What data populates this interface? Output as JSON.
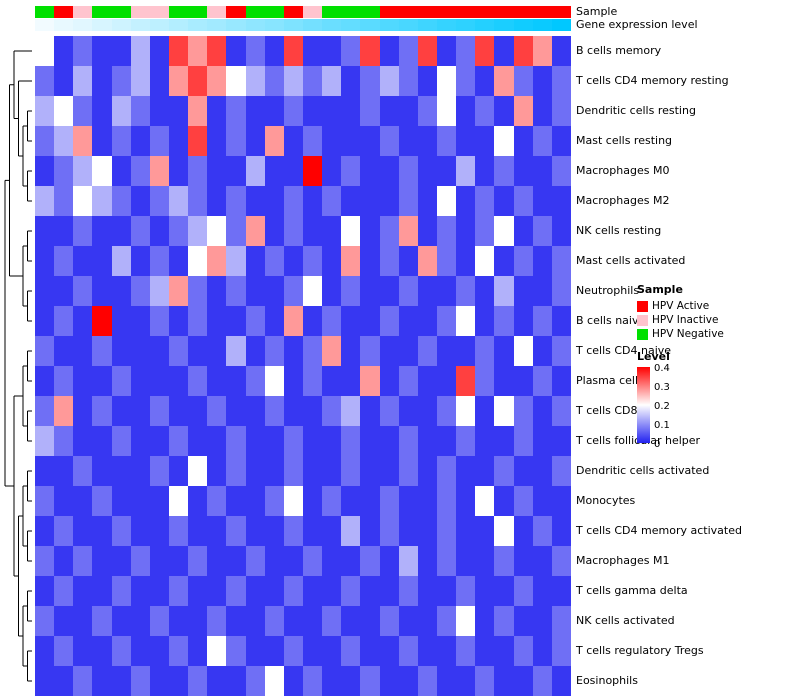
{
  "annotations": {
    "sample_label": "Sample",
    "expression_label": "Gene expression level"
  },
  "legend": {
    "sample_title": "Sample",
    "sample_items": [
      {
        "label": "HPV Active",
        "color": "#FF0000"
      },
      {
        "label": "HPV Inactive",
        "color": "#FFC4CE"
      },
      {
        "label": "HPV Negative",
        "color": "#00E000"
      }
    ],
    "level_title": "Level",
    "level_ticks": [
      "0.4",
      "0.3",
      "0.2",
      "0.1",
      "0"
    ]
  },
  "chart_data": {
    "type": "heatmap",
    "title": "",
    "rows": [
      "B cells memory",
      "T cells CD4 memory resting",
      "Dendritic cells resting",
      "Mast cells resting",
      "Macrophages M0",
      "Macrophages M2",
      "NK cells resting",
      "Mast cells activated",
      "Neutrophils",
      "B cells naive",
      "T cells CD4 naive",
      "Plasma cells",
      "T cells CD8",
      "T cells follicular helper",
      "Dendritic cells activated",
      "Monocytes",
      "T cells CD4 memory activated",
      "Macrophages M1",
      "T cells gamma delta",
      "NK cells activated",
      "T cells regulatory Tregs",
      "Eosinophils"
    ],
    "n_cols": 28,
    "value_range": [
      0,
      0.4
    ],
    "colormap": {
      "low": "#2121F0",
      "mid": "#FFFFFF",
      "high": "#FF0000",
      "midpoint": 0.2
    },
    "column_annotations": {
      "sample": [
        "HPV Negative",
        "HPV Active",
        "HPV Inactive",
        "HPV Negative",
        "HPV Negative",
        "HPV Inactive",
        "HPV Inactive",
        "HPV Negative",
        "HPV Negative",
        "HPV Inactive",
        "HPV Active",
        "HPV Negative",
        "HPV Negative",
        "HPV Active",
        "HPV Inactive",
        "HPV Negative",
        "HPV Negative",
        "HPV Negative",
        "HPV Active",
        "HPV Active",
        "HPV Active",
        "HPV Active",
        "HPV Active",
        "HPV Active",
        "HPV Active",
        "HPV Active",
        "HPV Active",
        "HPV Active"
      ],
      "sample_colors": {
        "HPV Active": "#FF0000",
        "HPV Inactive": "#FFC4CE",
        "HPV Negative": "#00E000"
      },
      "gene_expression_level": [
        0.0,
        0.04,
        0.07,
        0.11,
        0.15,
        0.19,
        0.22,
        0.26,
        0.3,
        0.33,
        0.37,
        0.41,
        0.44,
        0.48,
        0.52,
        0.56,
        0.59,
        0.63,
        0.67,
        0.7,
        0.74,
        0.78,
        0.81,
        0.85,
        0.89,
        0.93,
        0.96,
        1.0
      ],
      "gene_expression_colors": {
        "low": "#F2FBFF",
        "high": "#00C8FF"
      }
    },
    "values": [
      [
        0.2,
        0.02,
        0.07,
        0.02,
        0.02,
        0.13,
        0.02,
        0.35,
        0.28,
        0.35,
        0.02,
        0.07,
        0.02,
        0.35,
        0.02,
        0.02,
        0.07,
        0.35,
        0.02,
        0.07,
        0.35,
        0.02,
        0.07,
        0.35,
        0.02,
        0.35,
        0.28,
        0.02
      ],
      [
        0.07,
        0.02,
        0.13,
        0.02,
        0.07,
        0.13,
        0.02,
        0.28,
        0.35,
        0.28,
        0.2,
        0.13,
        0.07,
        0.13,
        0.07,
        0.13,
        0.02,
        0.07,
        0.13,
        0.07,
        0.02,
        0.2,
        0.07,
        0.02,
        0.28,
        0.07,
        0.02,
        0.07
      ],
      [
        0.13,
        0.2,
        0.07,
        0.02,
        0.13,
        0.07,
        0.02,
        0.02,
        0.28,
        0.02,
        0.07,
        0.02,
        0.02,
        0.07,
        0.02,
        0.02,
        0.02,
        0.07,
        0.02,
        0.02,
        0.07,
        0.2,
        0.02,
        0.07,
        0.02,
        0.28,
        0.02,
        0.07
      ],
      [
        0.07,
        0.13,
        0.28,
        0.02,
        0.07,
        0.02,
        0.07,
        0.02,
        0.35,
        0.02,
        0.07,
        0.02,
        0.28,
        0.02,
        0.07,
        0.02,
        0.02,
        0.02,
        0.07,
        0.02,
        0.02,
        0.07,
        0.02,
        0.02,
        0.2,
        0.02,
        0.07,
        0.02
      ],
      [
        0.02,
        0.07,
        0.13,
        0.2,
        0.02,
        0.07,
        0.28,
        0.02,
        0.07,
        0.02,
        0.02,
        0.13,
        0.02,
        0.02,
        0.4,
        0.02,
        0.07,
        0.02,
        0.02,
        0.07,
        0.02,
        0.02,
        0.13,
        0.02,
        0.07,
        0.02,
        0.02,
        0.07
      ],
      [
        0.13,
        0.07,
        0.2,
        0.13,
        0.07,
        0.02,
        0.07,
        0.13,
        0.07,
        0.02,
        0.07,
        0.02,
        0.02,
        0.07,
        0.02,
        0.07,
        0.02,
        0.02,
        0.02,
        0.07,
        0.02,
        0.2,
        0.02,
        0.07,
        0.02,
        0.07,
        0.02,
        0.02
      ],
      [
        0.02,
        0.02,
        0.07,
        0.02,
        0.02,
        0.07,
        0.02,
        0.07,
        0.13,
        0.2,
        0.07,
        0.28,
        0.02,
        0.07,
        0.02,
        0.02,
        0.2,
        0.02,
        0.07,
        0.28,
        0.02,
        0.07,
        0.02,
        0.07,
        0.2,
        0.02,
        0.07,
        0.02
      ],
      [
        0.02,
        0.07,
        0.02,
        0.02,
        0.13,
        0.02,
        0.07,
        0.02,
        0.2,
        0.28,
        0.13,
        0.02,
        0.07,
        0.02,
        0.07,
        0.02,
        0.28,
        0.02,
        0.07,
        0.02,
        0.28,
        0.07,
        0.02,
        0.2,
        0.02,
        0.07,
        0.02,
        0.07
      ],
      [
        0.02,
        0.02,
        0.07,
        0.02,
        0.02,
        0.07,
        0.13,
        0.28,
        0.07,
        0.02,
        0.07,
        0.02,
        0.02,
        0.07,
        0.2,
        0.02,
        0.07,
        0.02,
        0.02,
        0.07,
        0.02,
        0.02,
        0.07,
        0.02,
        0.13,
        0.02,
        0.02,
        0.07
      ],
      [
        0.02,
        0.07,
        0.02,
        0.4,
        0.02,
        0.02,
        0.07,
        0.02,
        0.07,
        0.02,
        0.02,
        0.07,
        0.02,
        0.28,
        0.02,
        0.07,
        0.02,
        0.02,
        0.07,
        0.02,
        0.02,
        0.07,
        0.2,
        0.02,
        0.07,
        0.02,
        0.07,
        0.02
      ],
      [
        0.07,
        0.02,
        0.02,
        0.07,
        0.02,
        0.02,
        0.02,
        0.07,
        0.02,
        0.02,
        0.13,
        0.02,
        0.07,
        0.02,
        0.07,
        0.28,
        0.02,
        0.07,
        0.02,
        0.02,
        0.07,
        0.02,
        0.02,
        0.07,
        0.02,
        0.2,
        0.02,
        0.07
      ],
      [
        0.02,
        0.07,
        0.02,
        0.02,
        0.07,
        0.02,
        0.02,
        0.02,
        0.07,
        0.02,
        0.02,
        0.07,
        0.2,
        0.02,
        0.07,
        0.02,
        0.02,
        0.28,
        0.02,
        0.07,
        0.02,
        0.02,
        0.35,
        0.07,
        0.02,
        0.02,
        0.07,
        0.02
      ],
      [
        0.07,
        0.28,
        0.02,
        0.07,
        0.02,
        0.02,
        0.07,
        0.02,
        0.02,
        0.07,
        0.02,
        0.02,
        0.07,
        0.02,
        0.02,
        0.07,
        0.13,
        0.02,
        0.07,
        0.02,
        0.02,
        0.07,
        0.2,
        0.02,
        0.2,
        0.07,
        0.02,
        0.07
      ],
      [
        0.13,
        0.07,
        0.02,
        0.02,
        0.07,
        0.02,
        0.02,
        0.07,
        0.02,
        0.02,
        0.07,
        0.02,
        0.02,
        0.07,
        0.02,
        0.02,
        0.07,
        0.02,
        0.02,
        0.07,
        0.02,
        0.02,
        0.07,
        0.02,
        0.02,
        0.07,
        0.02,
        0.02
      ],
      [
        0.02,
        0.02,
        0.07,
        0.02,
        0.02,
        0.02,
        0.07,
        0.02,
        0.2,
        0.02,
        0.07,
        0.02,
        0.02,
        0.07,
        0.02,
        0.02,
        0.07,
        0.02,
        0.02,
        0.07,
        0.02,
        0.07,
        0.02,
        0.02,
        0.07,
        0.02,
        0.02,
        0.07
      ],
      [
        0.07,
        0.02,
        0.02,
        0.07,
        0.02,
        0.02,
        0.02,
        0.2,
        0.02,
        0.07,
        0.02,
        0.02,
        0.07,
        0.2,
        0.02,
        0.07,
        0.02,
        0.02,
        0.07,
        0.02,
        0.02,
        0.07,
        0.02,
        0.2,
        0.02,
        0.07,
        0.02,
        0.02
      ],
      [
        0.02,
        0.07,
        0.02,
        0.02,
        0.07,
        0.02,
        0.02,
        0.07,
        0.02,
        0.02,
        0.07,
        0.02,
        0.02,
        0.07,
        0.02,
        0.02,
        0.13,
        0.02,
        0.07,
        0.02,
        0.02,
        0.07,
        0.02,
        0.02,
        0.2,
        0.02,
        0.07,
        0.02
      ],
      [
        0.07,
        0.02,
        0.07,
        0.02,
        0.02,
        0.07,
        0.02,
        0.02,
        0.07,
        0.02,
        0.02,
        0.07,
        0.02,
        0.02,
        0.07,
        0.02,
        0.02,
        0.07,
        0.02,
        0.13,
        0.02,
        0.07,
        0.02,
        0.02,
        0.07,
        0.02,
        0.02,
        0.07
      ],
      [
        0.02,
        0.07,
        0.02,
        0.02,
        0.07,
        0.02,
        0.02,
        0.07,
        0.02,
        0.02,
        0.07,
        0.02,
        0.02,
        0.07,
        0.02,
        0.02,
        0.07,
        0.02,
        0.02,
        0.07,
        0.02,
        0.02,
        0.07,
        0.02,
        0.02,
        0.07,
        0.02,
        0.02
      ],
      [
        0.07,
        0.02,
        0.02,
        0.07,
        0.02,
        0.02,
        0.07,
        0.02,
        0.02,
        0.07,
        0.02,
        0.02,
        0.07,
        0.02,
        0.02,
        0.07,
        0.02,
        0.02,
        0.07,
        0.02,
        0.02,
        0.07,
        0.2,
        0.02,
        0.07,
        0.02,
        0.02,
        0.07
      ],
      [
        0.02,
        0.07,
        0.02,
        0.02,
        0.07,
        0.02,
        0.02,
        0.07,
        0.02,
        0.2,
        0.07,
        0.02,
        0.02,
        0.07,
        0.02,
        0.02,
        0.07,
        0.02,
        0.02,
        0.07,
        0.02,
        0.02,
        0.07,
        0.02,
        0.02,
        0.07,
        0.02,
        0.07
      ],
      [
        0.02,
        0.02,
        0.07,
        0.02,
        0.02,
        0.07,
        0.02,
        0.02,
        0.07,
        0.02,
        0.02,
        0.07,
        0.2,
        0.02,
        0.07,
        0.02,
        0.02,
        0.07,
        0.02,
        0.02,
        0.07,
        0.02,
        0.02,
        0.07,
        0.02,
        0.02,
        0.07,
        0.02
      ]
    ],
    "dendrogram": [
      [
        [
          0,
          [
            1,
            [
              [
                2,
                3
              ],
              [
                4,
                5
              ]
            ]
          ]
        ],
        [
          [
            6,
            7
          ],
          [
            8,
            9
          ]
        ]
      ],
      [
        [
          [
            10,
            11
          ],
          [
            12,
            13
          ]
        ],
        [
          [
            [
              14,
              15
            ],
            [
              16,
              17
            ]
          ],
          [
            [
              18,
              19
            ],
            [
              20,
              21
            ]
          ]
        ]
      ]
    ],
    "legend_position": "right",
    "grid": false
  }
}
